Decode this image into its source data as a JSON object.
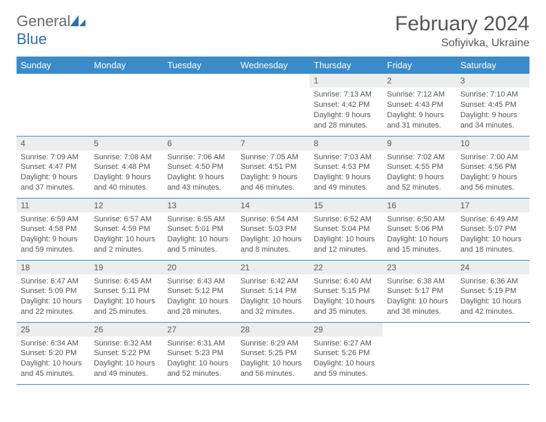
{
  "brand": {
    "part1": "General",
    "part2": "Blue"
  },
  "title": "February 2024",
  "location": "Sofiyivka, Ukraine",
  "colors": {
    "header_bg": "#3b8bc9",
    "header_text": "#ffffff",
    "daynum_bg": "#eceded",
    "text": "#555555",
    "rule": "#3b8bc9",
    "logo_blue": "#2f6fb0",
    "logo_gray": "#6a6a6a"
  },
  "weekdays": [
    "Sunday",
    "Monday",
    "Tuesday",
    "Wednesday",
    "Thursday",
    "Friday",
    "Saturday"
  ],
  "weeks": [
    [
      null,
      null,
      null,
      null,
      {
        "n": "1",
        "sr": "Sunrise: 7:13 AM",
        "ss": "Sunset: 4:42 PM",
        "dl1": "Daylight: 9 hours",
        "dl2": "and 28 minutes."
      },
      {
        "n": "2",
        "sr": "Sunrise: 7:12 AM",
        "ss": "Sunset: 4:43 PM",
        "dl1": "Daylight: 9 hours",
        "dl2": "and 31 minutes."
      },
      {
        "n": "3",
        "sr": "Sunrise: 7:10 AM",
        "ss": "Sunset: 4:45 PM",
        "dl1": "Daylight: 9 hours",
        "dl2": "and 34 minutes."
      }
    ],
    [
      {
        "n": "4",
        "sr": "Sunrise: 7:09 AM",
        "ss": "Sunset: 4:47 PM",
        "dl1": "Daylight: 9 hours",
        "dl2": "and 37 minutes."
      },
      {
        "n": "5",
        "sr": "Sunrise: 7:08 AM",
        "ss": "Sunset: 4:48 PM",
        "dl1": "Daylight: 9 hours",
        "dl2": "and 40 minutes."
      },
      {
        "n": "6",
        "sr": "Sunrise: 7:06 AM",
        "ss": "Sunset: 4:50 PM",
        "dl1": "Daylight: 9 hours",
        "dl2": "and 43 minutes."
      },
      {
        "n": "7",
        "sr": "Sunrise: 7:05 AM",
        "ss": "Sunset: 4:51 PM",
        "dl1": "Daylight: 9 hours",
        "dl2": "and 46 minutes."
      },
      {
        "n": "8",
        "sr": "Sunrise: 7:03 AM",
        "ss": "Sunset: 4:53 PM",
        "dl1": "Daylight: 9 hours",
        "dl2": "and 49 minutes."
      },
      {
        "n": "9",
        "sr": "Sunrise: 7:02 AM",
        "ss": "Sunset: 4:55 PM",
        "dl1": "Daylight: 9 hours",
        "dl2": "and 52 minutes."
      },
      {
        "n": "10",
        "sr": "Sunrise: 7:00 AM",
        "ss": "Sunset: 4:56 PM",
        "dl1": "Daylight: 9 hours",
        "dl2": "and 56 minutes."
      }
    ],
    [
      {
        "n": "11",
        "sr": "Sunrise: 6:59 AM",
        "ss": "Sunset: 4:58 PM",
        "dl1": "Daylight: 9 hours",
        "dl2": "and 59 minutes."
      },
      {
        "n": "12",
        "sr": "Sunrise: 6:57 AM",
        "ss": "Sunset: 4:59 PM",
        "dl1": "Daylight: 10 hours",
        "dl2": "and 2 minutes."
      },
      {
        "n": "13",
        "sr": "Sunrise: 6:55 AM",
        "ss": "Sunset: 5:01 PM",
        "dl1": "Daylight: 10 hours",
        "dl2": "and 5 minutes."
      },
      {
        "n": "14",
        "sr": "Sunrise: 6:54 AM",
        "ss": "Sunset: 5:03 PM",
        "dl1": "Daylight: 10 hours",
        "dl2": "and 8 minutes."
      },
      {
        "n": "15",
        "sr": "Sunrise: 6:52 AM",
        "ss": "Sunset: 5:04 PM",
        "dl1": "Daylight: 10 hours",
        "dl2": "and 12 minutes."
      },
      {
        "n": "16",
        "sr": "Sunrise: 6:50 AM",
        "ss": "Sunset: 5:06 PM",
        "dl1": "Daylight: 10 hours",
        "dl2": "and 15 minutes."
      },
      {
        "n": "17",
        "sr": "Sunrise: 6:49 AM",
        "ss": "Sunset: 5:07 PM",
        "dl1": "Daylight: 10 hours",
        "dl2": "and 18 minutes."
      }
    ],
    [
      {
        "n": "18",
        "sr": "Sunrise: 6:47 AM",
        "ss": "Sunset: 5:09 PM",
        "dl1": "Daylight: 10 hours",
        "dl2": "and 22 minutes."
      },
      {
        "n": "19",
        "sr": "Sunrise: 6:45 AM",
        "ss": "Sunset: 5:11 PM",
        "dl1": "Daylight: 10 hours",
        "dl2": "and 25 minutes."
      },
      {
        "n": "20",
        "sr": "Sunrise: 6:43 AM",
        "ss": "Sunset: 5:12 PM",
        "dl1": "Daylight: 10 hours",
        "dl2": "and 28 minutes."
      },
      {
        "n": "21",
        "sr": "Sunrise: 6:42 AM",
        "ss": "Sunset: 5:14 PM",
        "dl1": "Daylight: 10 hours",
        "dl2": "and 32 minutes."
      },
      {
        "n": "22",
        "sr": "Sunrise: 6:40 AM",
        "ss": "Sunset: 5:15 PM",
        "dl1": "Daylight: 10 hours",
        "dl2": "and 35 minutes."
      },
      {
        "n": "23",
        "sr": "Sunrise: 6:38 AM",
        "ss": "Sunset: 5:17 PM",
        "dl1": "Daylight: 10 hours",
        "dl2": "and 38 minutes."
      },
      {
        "n": "24",
        "sr": "Sunrise: 6:36 AM",
        "ss": "Sunset: 5:19 PM",
        "dl1": "Daylight: 10 hours",
        "dl2": "and 42 minutes."
      }
    ],
    [
      {
        "n": "25",
        "sr": "Sunrise: 6:34 AM",
        "ss": "Sunset: 5:20 PM",
        "dl1": "Daylight: 10 hours",
        "dl2": "and 45 minutes."
      },
      {
        "n": "26",
        "sr": "Sunrise: 6:32 AM",
        "ss": "Sunset: 5:22 PM",
        "dl1": "Daylight: 10 hours",
        "dl2": "and 49 minutes."
      },
      {
        "n": "27",
        "sr": "Sunrise: 6:31 AM",
        "ss": "Sunset: 5:23 PM",
        "dl1": "Daylight: 10 hours",
        "dl2": "and 52 minutes."
      },
      {
        "n": "28",
        "sr": "Sunrise: 6:29 AM",
        "ss": "Sunset: 5:25 PM",
        "dl1": "Daylight: 10 hours",
        "dl2": "and 56 minutes."
      },
      {
        "n": "29",
        "sr": "Sunrise: 6:27 AM",
        "ss": "Sunset: 5:26 PM",
        "dl1": "Daylight: 10 hours",
        "dl2": "and 59 minutes."
      },
      null,
      null
    ]
  ]
}
